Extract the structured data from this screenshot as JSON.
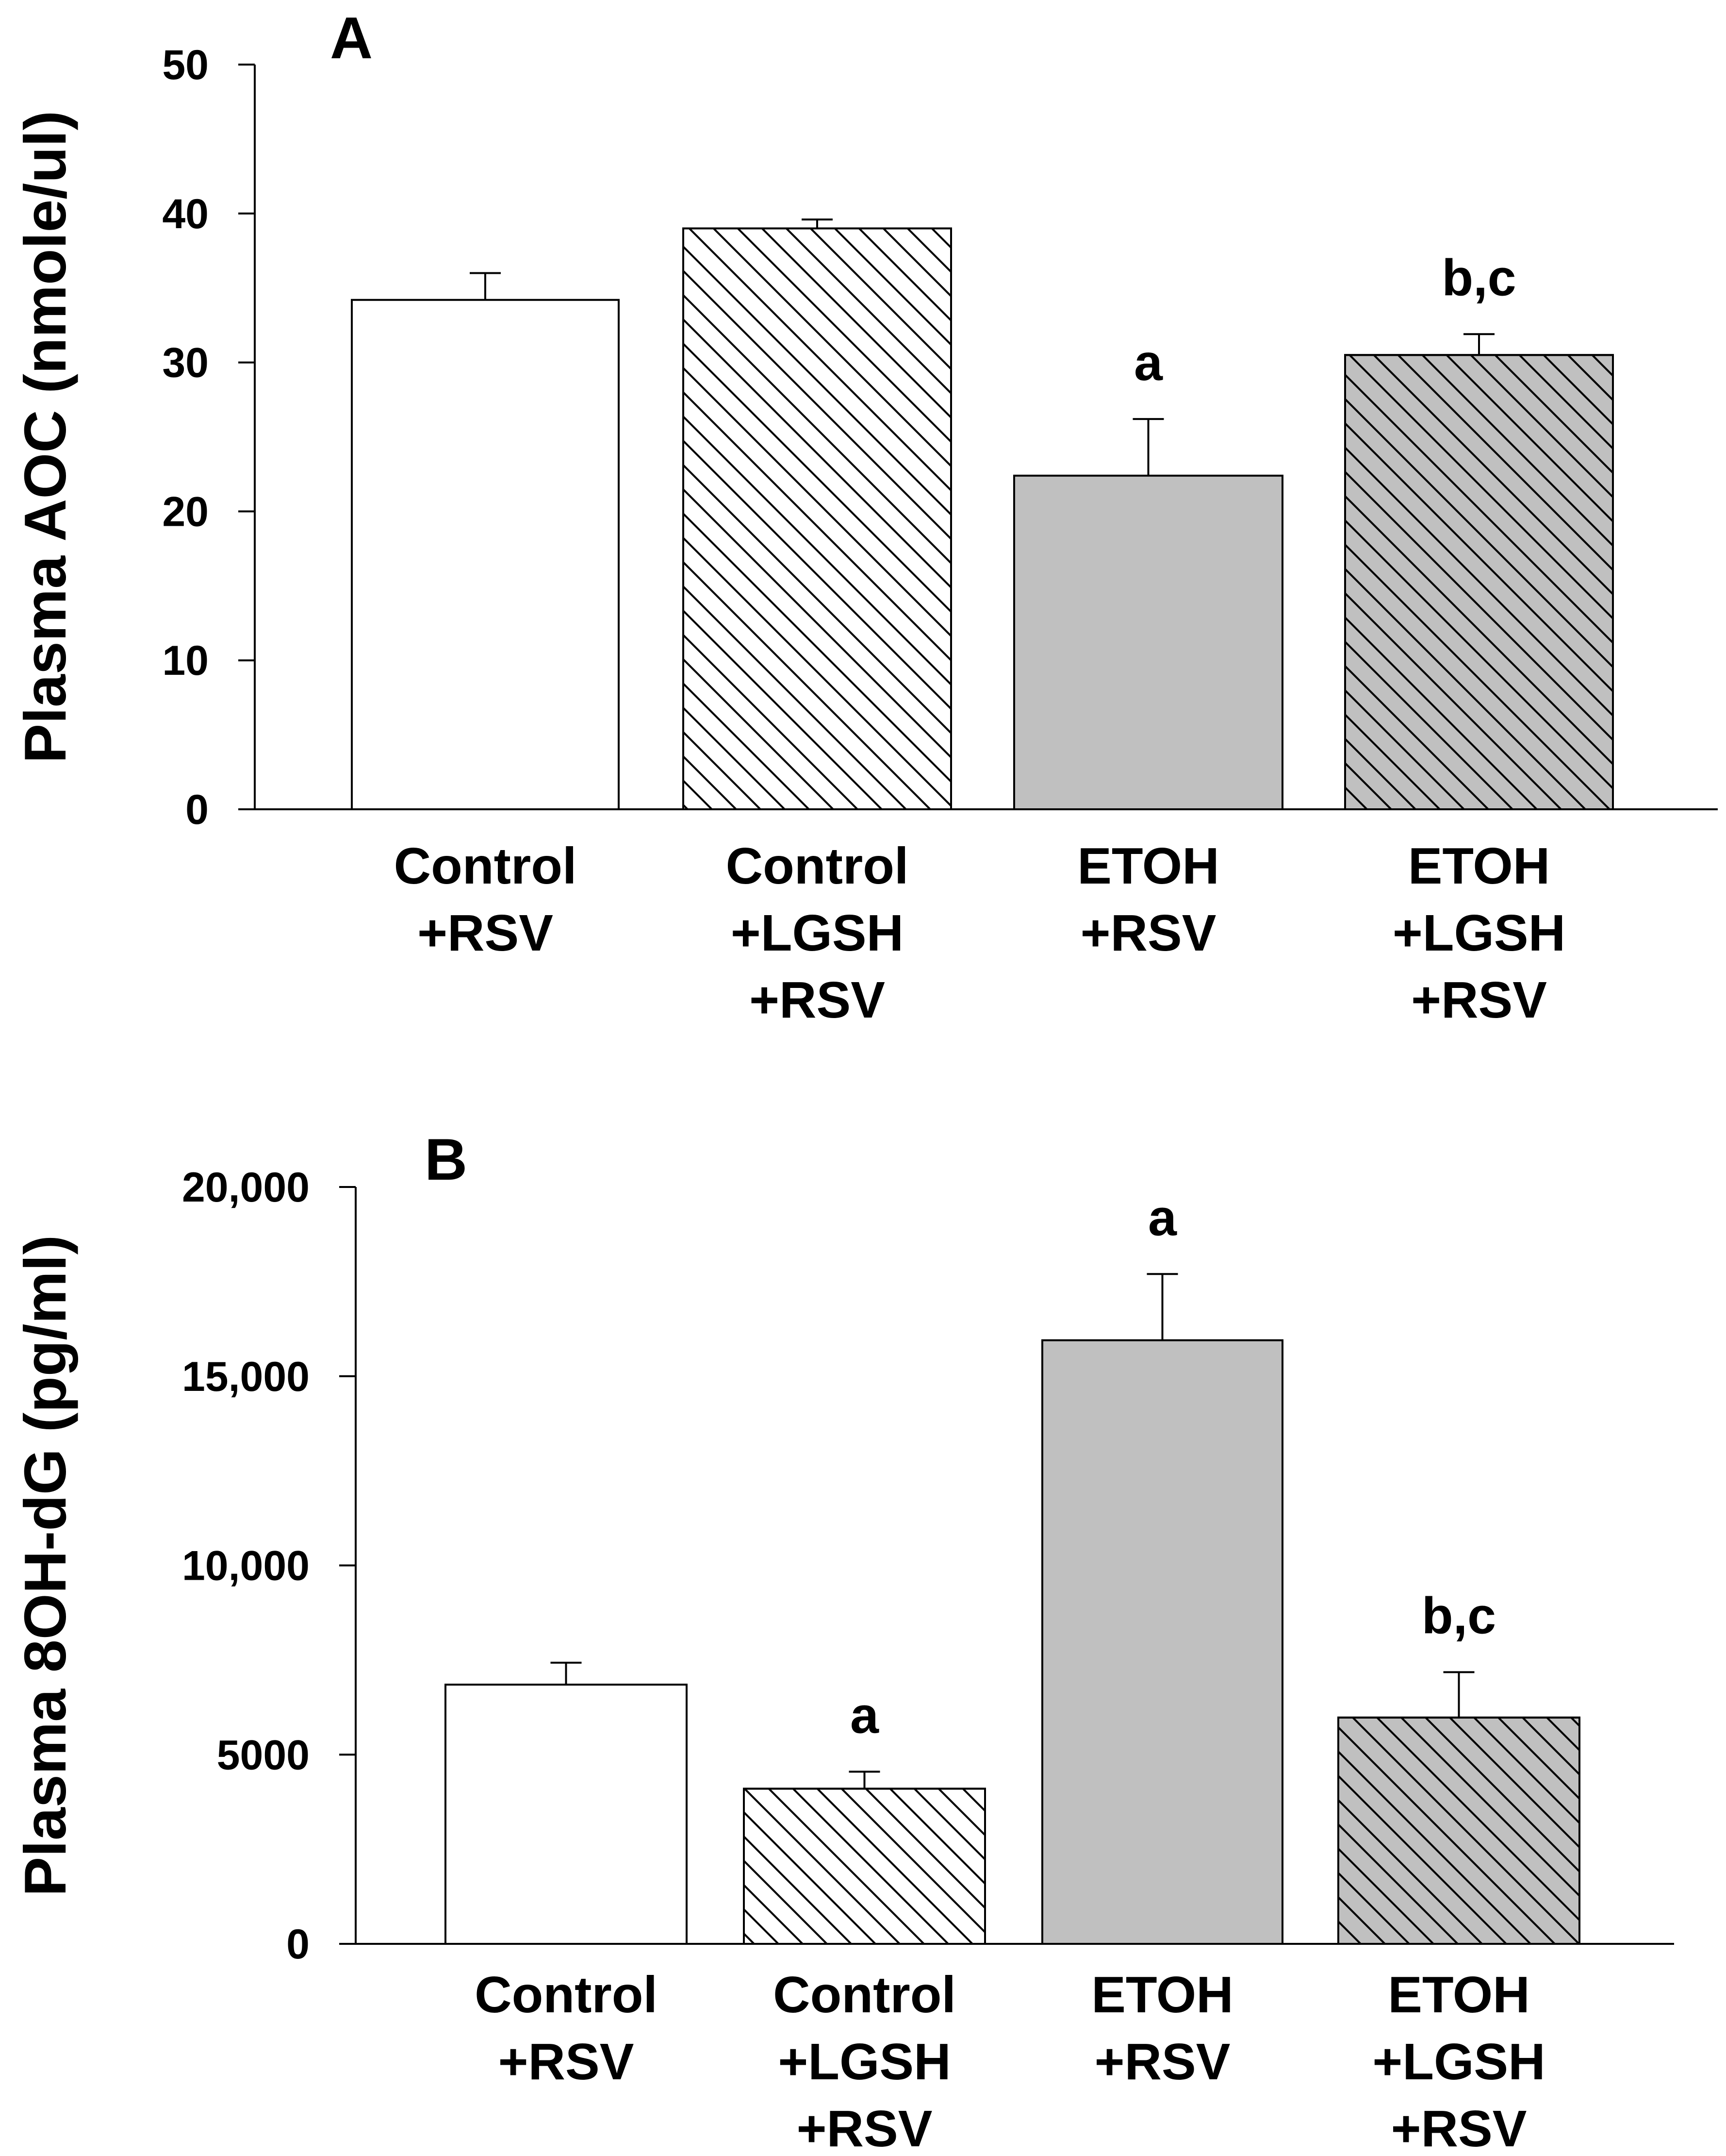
{
  "chart_data": [
    {
      "type": "bar",
      "panel_label": "A",
      "ylabel": "Plasma AOC (nmole/ul)",
      "ylim": [
        0,
        50
      ],
      "yticks": [
        "0",
        "10",
        "20",
        "30",
        "40",
        "50"
      ],
      "ytick_values": [
        0,
        10,
        20,
        30,
        40,
        50
      ],
      "categories": [
        [
          "Control",
          "+RSV"
        ],
        [
          "Control",
          "+LGSH",
          "+RSV"
        ],
        [
          "ETOH",
          "+RSV"
        ],
        [
          "ETOH",
          "+LGSH",
          "+RSV"
        ]
      ],
      "values": [
        34.2,
        39.0,
        22.4,
        30.5
      ],
      "errors": [
        1.8,
        0.6,
        3.8,
        1.4
      ],
      "significance": [
        "",
        "",
        "a",
        "b,c"
      ],
      "fills": [
        "#ffffff",
        "#ffffff",
        "#c0c0c0",
        "#c0c0c0"
      ],
      "hatched": [
        false,
        true,
        false,
        true
      ]
    },
    {
      "type": "bar",
      "panel_label": "B",
      "ylabel": "Plasma 8OH-dG (pg/ml)",
      "ylim": [
        0,
        20000
      ],
      "yticks": [
        "0",
        "5000",
        "10,000",
        "15,000",
        "20,000"
      ],
      "ytick_values": [
        0,
        5000,
        10000,
        15000,
        20000
      ],
      "categories": [
        [
          "Control",
          "+RSV"
        ],
        [
          "Control",
          "+LGSH",
          "+RSV"
        ],
        [
          "ETOH",
          "+RSV"
        ],
        [
          "ETOH",
          "+LGSH",
          "+RSV"
        ]
      ],
      "values": [
        6850,
        4100,
        15950,
        5980
      ],
      "errors": [
        580,
        450,
        1750,
        1200
      ],
      "significance": [
        "",
        "a",
        "a",
        "b,c"
      ],
      "fills": [
        "#ffffff",
        "#ffffff",
        "#c0c0c0",
        "#c0c0c0"
      ],
      "hatched": [
        false,
        true,
        false,
        true
      ]
    }
  ]
}
